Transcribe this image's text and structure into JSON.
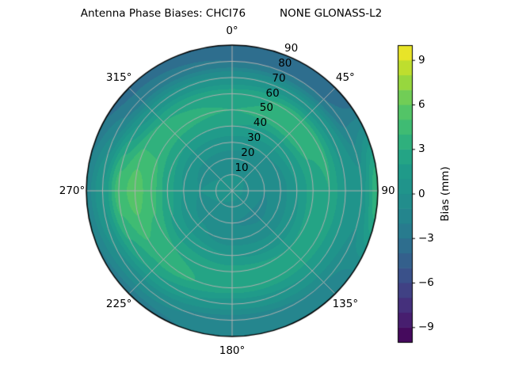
{
  "chart_data": {
    "type": "polar_contour_heatmap",
    "title": "Antenna Phase Biases: CHCI76          NONE GLONASS-L2",
    "theta_zero_location": "N",
    "theta_direction": "clockwise",
    "theta_ticks": [
      {
        "angle_deg": 0,
        "label": "0°"
      },
      {
        "angle_deg": 45,
        "label": "45°"
      },
      {
        "angle_deg": 90,
        "label": "90"
      },
      {
        "angle_deg": 135,
        "label": "135°"
      },
      {
        "angle_deg": 180,
        "label": "180°"
      },
      {
        "angle_deg": 225,
        "label": "225°"
      },
      {
        "angle_deg": 270,
        "label": "270°"
      },
      {
        "angle_deg": 315,
        "label": "315°"
      }
    ],
    "r_ticks": [
      {
        "value": 10,
        "label": "10"
      },
      {
        "value": 20,
        "label": "20"
      },
      {
        "value": 30,
        "label": "30"
      },
      {
        "value": 40,
        "label": "40"
      },
      {
        "value": 50,
        "label": "50"
      },
      {
        "value": 60,
        "label": "60"
      },
      {
        "value": 70,
        "label": "70"
      },
      {
        "value": 80,
        "label": "80"
      },
      {
        "value": 90,
        "label": "90"
      }
    ],
    "r_max": 90,
    "r_label_angle_deg": 22.5,
    "grid": true,
    "legend_position": "right-colorbar",
    "colorbar": {
      "label": "Bias (mm)",
      "vmin": -10,
      "vmax": 10,
      "n_bands": 20,
      "ticks": [
        {
          "value": 9,
          "label": "9"
        },
        {
          "value": 6,
          "label": "6"
        },
        {
          "value": 3,
          "label": "3"
        },
        {
          "value": 0,
          "label": "0"
        },
        {
          "value": -3,
          "label": "−3"
        },
        {
          "value": -6,
          "label": "−6"
        },
        {
          "value": -9,
          "label": "−9"
        }
      ]
    },
    "colormap": {
      "name": "viridis",
      "stops": [
        "#440154",
        "#482878",
        "#3e4a89",
        "#31688e",
        "#26828e",
        "#21918c",
        "#1f9e89",
        "#35b779",
        "#5ec962",
        "#aadc32",
        "#fde725"
      ]
    },
    "field": {
      "units": "mm",
      "azimuth_deg": [
        0,
        45,
        90,
        135,
        180,
        225,
        270,
        315
      ],
      "radius": [
        0,
        10,
        20,
        30,
        40,
        50,
        60,
        70,
        80,
        90
      ],
      "bias_mm": [
        [
          0.5,
          0.0,
          -0.5,
          0.5,
          2.0,
          3.0,
          2.5,
          0.0,
          -3.0,
          -4.0
        ],
        [
          0.5,
          0.0,
          -0.7,
          0.0,
          1.5,
          3.5,
          3.5,
          0.5,
          -3.0,
          -4.0
        ],
        [
          0.5,
          -0.2,
          -1.0,
          -0.5,
          1.0,
          2.5,
          3.0,
          1.0,
          0.5,
          4.0
        ],
        [
          0.5,
          -0.3,
          -1.2,
          -0.8,
          0.5,
          2.0,
          2.5,
          1.0,
          -1.0,
          -2.0
        ],
        [
          0.5,
          -0.2,
          -1.0,
          -0.5,
          1.0,
          2.5,
          2.5,
          0.5,
          -1.5,
          -1.5
        ],
        [
          0.5,
          0.0,
          -0.6,
          0.2,
          1.5,
          3.0,
          3.5,
          2.0,
          -0.5,
          -2.5
        ],
        [
          0.5,
          0.2,
          0.0,
          1.0,
          2.5,
          4.5,
          5.5,
          4.5,
          1.0,
          -1.5
        ],
        [
          0.5,
          0.0,
          -0.4,
          0.5,
          2.0,
          3.5,
          3.0,
          0.5,
          -2.5,
          -3.5
        ]
      ]
    },
    "colors": {
      "background": "#ffffff",
      "grid": "#b0b0b0",
      "outline": "#000000",
      "text": "#000000"
    }
  }
}
